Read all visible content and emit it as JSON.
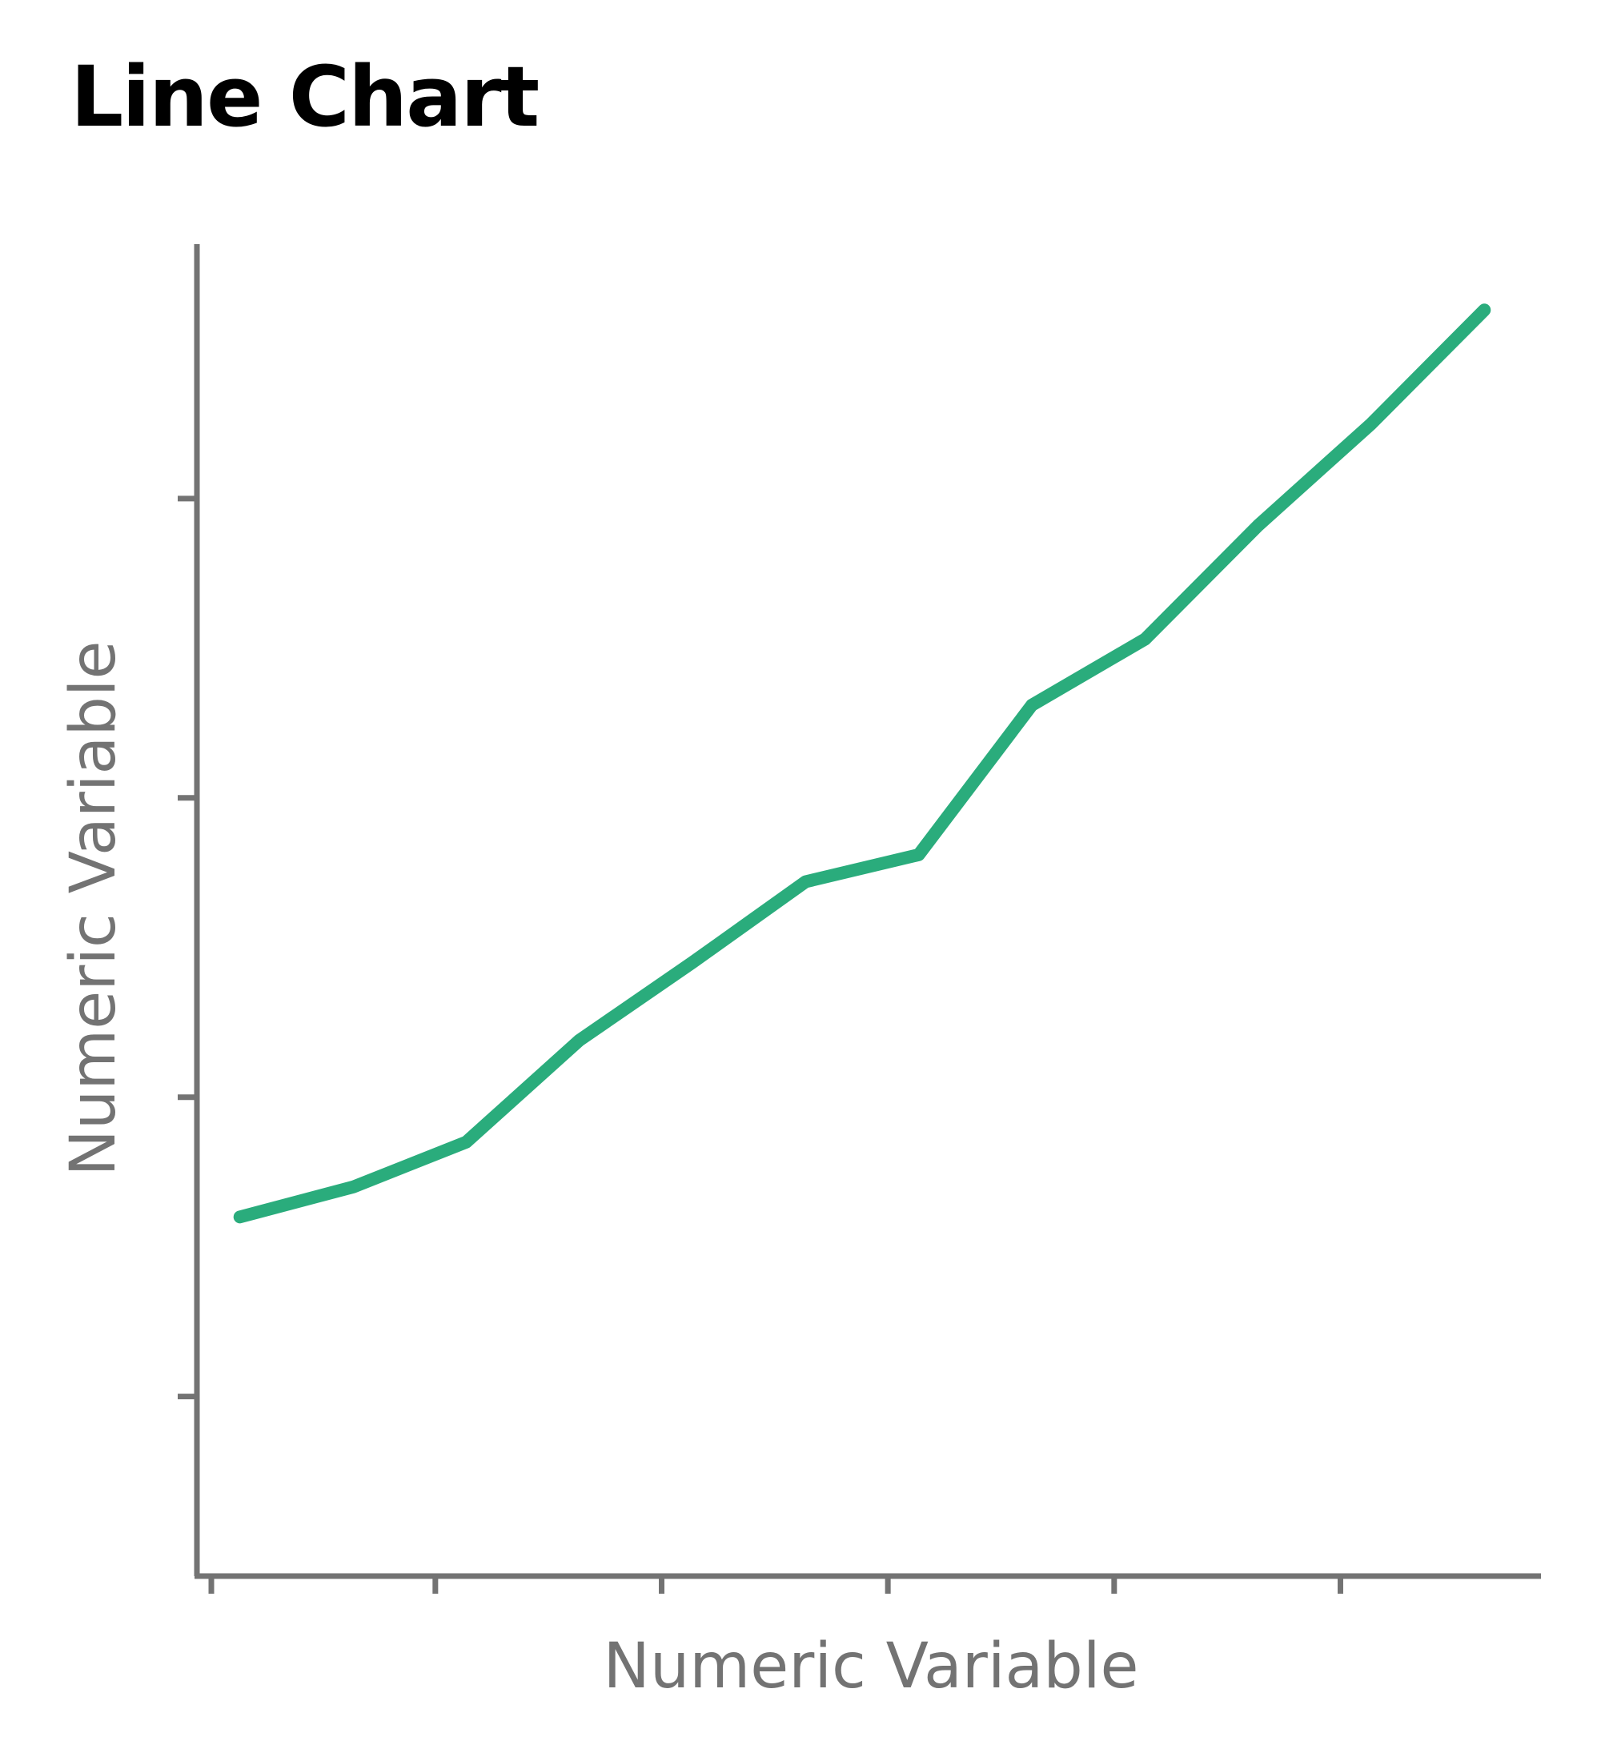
{
  "chart_data": {
    "type": "line",
    "title": "Line Chart",
    "xlabel": "Numeric Variable",
    "ylabel": "Numeric Variable",
    "x": [
      1,
      2,
      3,
      4,
      5,
      6,
      7,
      8,
      9,
      10,
      11,
      12
    ],
    "series": [
      {
        "values": [
          2.6,
          2.7,
          2.85,
          3.19,
          3.45,
          3.72,
          3.81,
          4.31,
          4.53,
          4.91,
          5.25,
          5.63
        ]
      }
    ],
    "xlim": [
      0.62,
      12.5
    ],
    "ylim": [
      1.4,
      5.85
    ],
    "xticks": [
      0.62,
      2.6,
      4.6,
      6.6,
      8.6,
      10.6
    ],
    "yticks": [
      2.0,
      3.0,
      4.0,
      5.0
    ],
    "grid": false,
    "legend": "none",
    "show_tick_labels": false
  },
  "colors": {
    "line": "#2aac7c",
    "axis": "#737373",
    "title": "#000000"
  }
}
